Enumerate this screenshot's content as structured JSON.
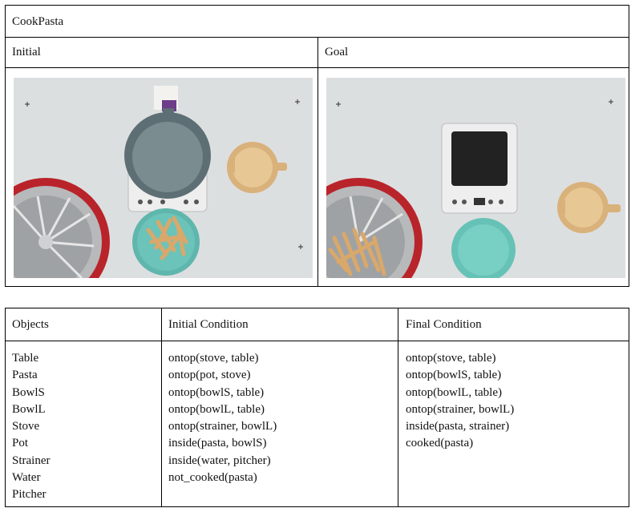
{
  "task": {
    "title": "CookPasta",
    "initial_label": "Initial",
    "goal_label": "Goal"
  },
  "images": {
    "initial_alt": "Initial scene: stove with pot, pitcher, strainer on bowlL, pasta in bowlS",
    "goal_alt": "Goal scene: empty stove, pasta in strainer on bowlL, empty bowlS, pitcher"
  },
  "table": {
    "headers": [
      "Objects",
      "Initial Condition",
      "Final Condition"
    ],
    "objects": [
      "Table",
      "Pasta",
      "BowlS",
      "BowlL",
      "Stove",
      "Pot",
      "Strainer",
      "Water",
      "Pitcher"
    ],
    "initial": [
      "ontop(stove, table)",
      "ontop(pot, stove)",
      "ontop(bowlS, table)",
      "ontop(bowlL, table)",
      "ontop(strainer, bowlL)",
      "inside(pasta, bowlS)",
      "inside(water, pitcher)",
      "not_cooked(pasta)"
    ],
    "final": [
      "ontop(stove, table)",
      "ontop(bowlS, table)",
      "ontop(bowlL, table)",
      "ontop(strainer, bowlL)",
      "inside(pasta, strainer)",
      "cooked(pasta)"
    ]
  }
}
